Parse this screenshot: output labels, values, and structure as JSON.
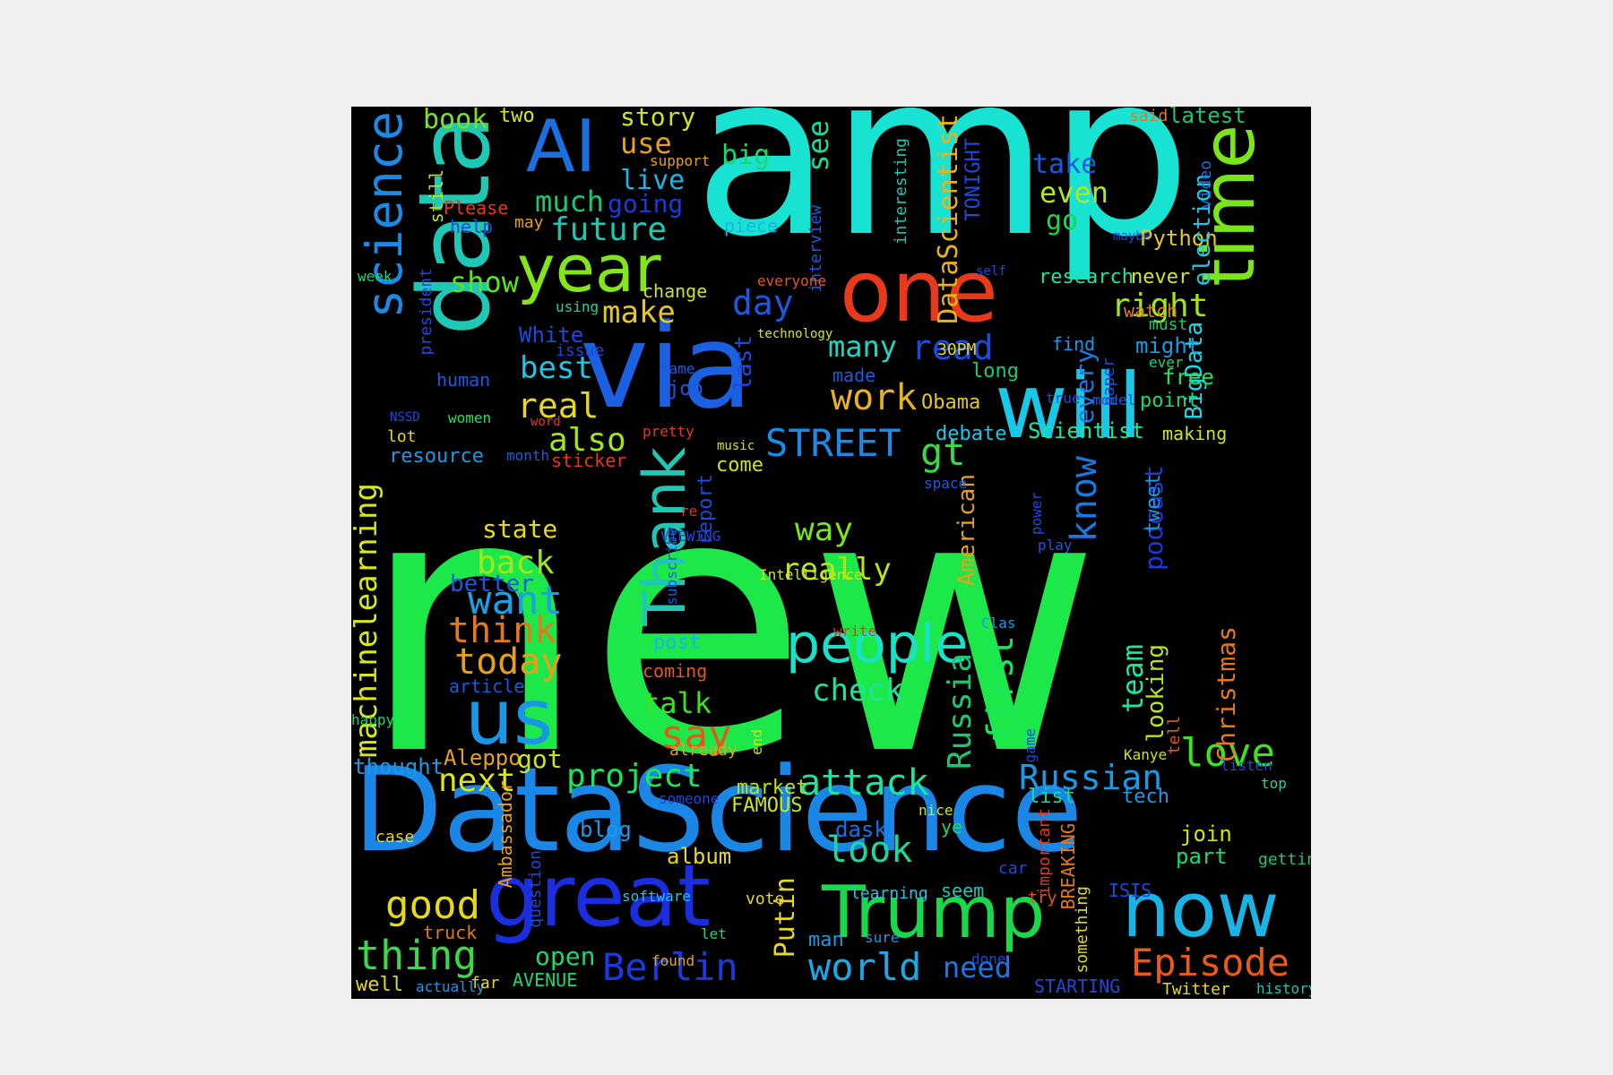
{
  "words": [
    {
      "text": "new",
      "color": "#1de84a",
      "orient": "h"
    },
    {
      "text": "amp",
      "color": "#18e2d2",
      "orient": "h"
    },
    {
      "text": "DataScience",
      "color": "#1a86e6",
      "orient": "h"
    },
    {
      "text": "data",
      "color": "#1ec8b4",
      "orient": "v"
    },
    {
      "text": "via",
      "color": "#1a60e0",
      "orient": "h"
    },
    {
      "text": "will",
      "color": "#18c8e6",
      "orient": "h"
    },
    {
      "text": "one",
      "color": "#e83a1a",
      "orient": "h"
    },
    {
      "text": "great",
      "color": "#1a2ee0",
      "orient": "h"
    },
    {
      "text": "Trump",
      "color": "#1ad84a",
      "orient": "h"
    },
    {
      "text": "now",
      "color": "#18b4e6",
      "orient": "h"
    },
    {
      "text": "time",
      "color": "#7ae61a",
      "orient": "v"
    },
    {
      "text": "AI",
      "color": "#1a70e0",
      "orient": "h"
    },
    {
      "text": "year",
      "color": "#82e61a",
      "orient": "h"
    },
    {
      "text": "science",
      "color": "#1a8ae6",
      "orient": "v"
    },
    {
      "text": "us",
      "color": "#1a96e6",
      "orient": "h"
    },
    {
      "text": "Thank",
      "color": "#1ec8b4",
      "orient": "v"
    },
    {
      "text": "people",
      "color": "#18e2c8",
      "orient": "h"
    },
    {
      "text": "Episode",
      "color": "#e85a1a",
      "orient": "h"
    },
    {
      "text": "machinelearning",
      "color": "#d8e61a",
      "orient": "v"
    },
    {
      "text": "Berlin",
      "color": "#1a3ae0",
      "orient": "h"
    },
    {
      "text": "world",
      "color": "#1aa8e6",
      "orient": "h"
    },
    {
      "text": "thing",
      "color": "#3ad84a",
      "orient": "h"
    },
    {
      "text": "good",
      "color": "#e6d81a",
      "orient": "h"
    },
    {
      "text": "love",
      "color": "#3ae61a",
      "orient": "h"
    },
    {
      "text": "look",
      "color": "#1ad8a0",
      "orient": "h"
    },
    {
      "text": "Russian",
      "color": "#1a9ae6",
      "orient": "h"
    },
    {
      "text": "Russia",
      "color": "#1ac870",
      "orient": "v"
    },
    {
      "text": "first",
      "color": "#1ae65a",
      "orient": "v"
    },
    {
      "text": "want",
      "color": "#1aa0e6",
      "orient": "h"
    },
    {
      "text": "think",
      "color": "#e6781a",
      "orient": "h"
    },
    {
      "text": "today",
      "color": "#e6a01a",
      "orient": "h"
    },
    {
      "text": "back",
      "color": "#a0e61a",
      "orient": "h"
    },
    {
      "text": "say",
      "color": "#e6581a",
      "orient": "h"
    },
    {
      "text": "attack",
      "color": "#1ae6a0",
      "orient": "h"
    },
    {
      "text": "next",
      "color": "#d8e61a",
      "orient": "h"
    },
    {
      "text": "project",
      "color": "#1ae65a",
      "orient": "h"
    },
    {
      "text": "talk",
      "color": "#3ae61a",
      "orient": "h"
    },
    {
      "text": "check",
      "color": "#1ae6a0",
      "orient": "h"
    },
    {
      "text": "really",
      "color": "#b4e61a",
      "orient": "h"
    },
    {
      "text": "way",
      "color": "#78e61a",
      "orient": "h"
    },
    {
      "text": "also",
      "color": "#a0e61a",
      "orient": "h"
    },
    {
      "text": "real",
      "color": "#e6d81a",
      "orient": "h"
    },
    {
      "text": "best",
      "color": "#1ac8e6",
      "orient": "h"
    },
    {
      "text": "work",
      "color": "#e6b41a",
      "orient": "h"
    },
    {
      "text": "gt",
      "color": "#3ad84a",
      "orient": "h"
    },
    {
      "text": "STREET",
      "color": "#1a8ae6",
      "orient": "h"
    },
    {
      "text": "read",
      "color": "#1a4ae0",
      "orient": "h"
    },
    {
      "text": "many",
      "color": "#1ad8c8",
      "orient": "h"
    },
    {
      "text": "right",
      "color": "#a0e61a",
      "orient": "h"
    },
    {
      "text": "make",
      "color": "#e6c81a",
      "orient": "h"
    },
    {
      "text": "day",
      "color": "#1a5ae0",
      "orient": "h"
    },
    {
      "text": "future",
      "color": "#1ac8b4",
      "orient": "h"
    },
    {
      "text": "much",
      "color": "#1ac870",
      "orient": "h"
    },
    {
      "text": "show",
      "color": "#58e61a",
      "orient": "h"
    },
    {
      "text": "going",
      "color": "#1a3ae0",
      "orient": "h"
    },
    {
      "text": "live",
      "color": "#1ab4e6",
      "orient": "h"
    },
    {
      "text": "use",
      "color": "#e6a01a",
      "orient": "h"
    },
    {
      "text": "big",
      "color": "#1ad870",
      "orient": "h"
    },
    {
      "text": "story",
      "color": "#c8e61a",
      "orient": "h"
    },
    {
      "text": "book",
      "color": "#78e61a",
      "orient": "h"
    },
    {
      "text": "two",
      "color": "#d8e61a",
      "orient": "h"
    },
    {
      "text": "see",
      "color": "#1ad8a0",
      "orient": "v"
    },
    {
      "text": "DataScientist",
      "color": "#e6b41a",
      "orient": "v"
    },
    {
      "text": "take",
      "color": "#1a5ae0",
      "orient": "h"
    },
    {
      "text": "even",
      "color": "#b4e61a",
      "orient": "h"
    },
    {
      "text": "go",
      "color": "#1ad84a",
      "orient": "h"
    },
    {
      "text": "Python",
      "color": "#e6c81a",
      "orient": "h"
    },
    {
      "text": "election",
      "color": "#1ac8e6",
      "orient": "v"
    },
    {
      "text": "research",
      "color": "#1ae6a0",
      "orient": "h"
    },
    {
      "text": "never",
      "color": "#d8e61a",
      "orient": "h"
    },
    {
      "text": "BigData",
      "color": "#1ad8e6",
      "orient": "v"
    },
    {
      "text": "said",
      "color": "#e6781a",
      "orient": "h"
    },
    {
      "text": "latest",
      "color": "#1ac870",
      "orient": "h"
    },
    {
      "text": "video",
      "color": "#1a70e0",
      "orient": "v"
    },
    {
      "text": "know",
      "color": "#1a78e6",
      "orient": "v"
    },
    {
      "text": "podcast",
      "color": "#1a3ae0",
      "orient": "v"
    },
    {
      "text": "every",
      "color": "#1a7ae6",
      "orient": "v"
    },
    {
      "text": "might",
      "color": "#1a9ae6",
      "orient": "h"
    },
    {
      "text": "free",
      "color": "#1ae65a",
      "orient": "h"
    },
    {
      "text": "point",
      "color": "#1ad870",
      "orient": "h"
    },
    {
      "text": "making",
      "color": "#c8e61a",
      "orient": "h"
    },
    {
      "text": "Scientist",
      "color": "#1ae6a0",
      "orient": "h"
    },
    {
      "text": "debate",
      "color": "#1ac8e6",
      "orient": "h"
    },
    {
      "text": "find",
      "color": "#1a9ae6",
      "orient": "h"
    },
    {
      "text": "American",
      "color": "#e6a01a",
      "orient": "v"
    },
    {
      "text": "Obama",
      "color": "#e6c81a",
      "orient": "h"
    },
    {
      "text": "long",
      "color": "#1ac870",
      "orient": "h"
    },
    {
      "text": "30PM",
      "color": "#e6d81a",
      "orient": "h"
    },
    {
      "text": "TONIGHT",
      "color": "#1a4ae0",
      "orient": "v"
    },
    {
      "text": "team",
      "color": "#1ae6a0",
      "orient": "v"
    },
    {
      "text": "looking",
      "color": "#b4e61a",
      "orient": "v"
    },
    {
      "text": "Christmas",
      "color": "#e6781a",
      "orient": "v"
    },
    {
      "text": "list",
      "color": "#1ad8a0",
      "orient": "h"
    },
    {
      "text": "tech",
      "color": "#1a9ae6",
      "orient": "h"
    },
    {
      "text": "join",
      "color": "#c8e61a",
      "orient": "h"
    },
    {
      "text": "part",
      "color": "#1ad870",
      "orient": "h"
    },
    {
      "text": "Putin",
      "color": "#e6d81a",
      "orient": "v"
    },
    {
      "text": "need",
      "color": "#1a78e6",
      "orient": "h"
    },
    {
      "text": "STARTING",
      "color": "#1a4ae0",
      "orient": "h"
    },
    {
      "text": "Twitter",
      "color": "#e6d81a",
      "orient": "h"
    },
    {
      "text": "history",
      "color": "#1ac8b4",
      "orient": "h"
    },
    {
      "text": "open",
      "color": "#1ad870",
      "orient": "h"
    },
    {
      "text": "AVENUE",
      "color": "#1ad870",
      "orient": "h"
    },
    {
      "text": "well",
      "color": "#e6d81a",
      "orient": "h"
    },
    {
      "text": "actually",
      "color": "#1a9ae6",
      "orient": "h"
    },
    {
      "text": "album",
      "color": "#e6d81a",
      "orient": "h"
    },
    {
      "text": "blog",
      "color": "#1a9ae6",
      "orient": "h"
    },
    {
      "text": "market",
      "color": "#b4e61a",
      "orient": "h"
    },
    {
      "text": "FAMOUS",
      "color": "#c8e61a",
      "orient": "h"
    },
    {
      "text": "dask",
      "color": "#1a70e0",
      "orient": "h"
    },
    {
      "text": "Aleppo",
      "color": "#e6a01a",
      "orient": "h"
    },
    {
      "text": "got",
      "color": "#c8e61a",
      "orient": "h"
    },
    {
      "text": "thought",
      "color": "#1a9ae6",
      "orient": "h"
    },
    {
      "text": "article",
      "color": "#1a5ae0",
      "orient": "h"
    },
    {
      "text": "post",
      "color": "#1ab4e6",
      "orient": "h"
    },
    {
      "text": "coming",
      "color": "#e6581a",
      "orient": "h"
    },
    {
      "text": "state",
      "color": "#e6d81a",
      "orient": "h"
    },
    {
      "text": "better",
      "color": "#1a5ae0",
      "orient": "h"
    },
    {
      "text": "report",
      "color": "#1a4ae0",
      "orient": "v"
    },
    {
      "text": "come",
      "color": "#c8e61a",
      "orient": "h"
    },
    {
      "text": "last",
      "color": "#1a4ae0",
      "orient": "v"
    },
    {
      "text": "job",
      "color": "#1a5ae0",
      "orient": "h"
    },
    {
      "text": "made",
      "color": "#1a5ae0",
      "orient": "h"
    },
    {
      "text": "White",
      "color": "#1a4ae0",
      "orient": "h"
    },
    {
      "text": "human",
      "color": "#1a5ae0",
      "orient": "h"
    },
    {
      "text": "resource",
      "color": "#1a9ae6",
      "orient": "h"
    },
    {
      "text": "sticker",
      "color": "#e6381a",
      "orient": "h"
    },
    {
      "text": "Please",
      "color": "#e6381a",
      "orient": "h"
    },
    {
      "text": "help",
      "color": "#1a4ae0",
      "orient": "h"
    },
    {
      "text": "may",
      "color": "#e6a01a",
      "orient": "h"
    },
    {
      "text": "still",
      "color": "#b4e61a",
      "orient": "v"
    },
    {
      "text": "president",
      "color": "#1a4ae0",
      "orient": "v"
    },
    {
      "text": "change",
      "color": "#c8e61a",
      "orient": "h"
    },
    {
      "text": "piece",
      "color": "#1ab4e6",
      "orient": "h"
    },
    {
      "text": "interview",
      "color": "#1a5ae0",
      "orient": "v"
    },
    {
      "text": "interesting",
      "color": "#1ac8b4",
      "orient": "v"
    },
    {
      "text": "support",
      "color": "#e6a01a",
      "orient": "h"
    },
    {
      "text": "maybe",
      "color": "#1a4ae0",
      "orient": "h"
    },
    {
      "text": "self",
      "color": "#1a4ae0",
      "orient": "h"
    },
    {
      "text": "everyone",
      "color": "#e6581a",
      "orient": "h"
    },
    {
      "text": "technology",
      "color": "#d8e61a",
      "orient": "h"
    },
    {
      "text": "using",
      "color": "#1ad8a0",
      "orient": "h"
    },
    {
      "text": "issue",
      "color": "#1a4ae0",
      "orient": "h"
    },
    {
      "text": "week",
      "color": "#1ad870",
      "orient": "h"
    },
    {
      "text": "name",
      "color": "#1a5ae0",
      "orient": "h"
    },
    {
      "text": "NSSD",
      "color": "#1a4ae0",
      "orient": "h"
    },
    {
      "text": "women",
      "color": "#1ae65a",
      "orient": "h"
    },
    {
      "text": "word",
      "color": "#e6381a",
      "orient": "h"
    },
    {
      "text": "pretty",
      "color": "#e6381a",
      "orient": "h"
    },
    {
      "text": "lot",
      "color": "#e6d81a",
      "orient": "h"
    },
    {
      "text": "month",
      "color": "#1a5ae0",
      "orient": "h"
    },
    {
      "text": "music",
      "color": "#c8e61a",
      "orient": "h"
    },
    {
      "text": "space",
      "color": "#1a5ae0",
      "orient": "h"
    },
    {
      "text": "watch",
      "color": "#e6781a",
      "orient": "h"
    },
    {
      "text": "must",
      "color": "#1ac870",
      "orient": "h"
    },
    {
      "text": "ever",
      "color": "#1ad870",
      "orient": "h"
    },
    {
      "text": "paper",
      "color": "#1a4ae0",
      "orient": "v"
    },
    {
      "text": "model",
      "color": "#1a5ae0",
      "orient": "h"
    },
    {
      "text": "true",
      "color": "#1a4ae0",
      "orient": "h"
    },
    {
      "text": "tweet",
      "color": "#1a9ae6",
      "orient": "v"
    },
    {
      "text": "power",
      "color": "#1a4ae0",
      "orient": "v"
    },
    {
      "text": "play",
      "color": "#1a5ae0",
      "orient": "h"
    },
    {
      "text": "VIEWING",
      "color": "#1a4ae0",
      "orient": "h"
    },
    {
      "text": "subscribe",
      "color": "#1a5ae0",
      "orient": "v"
    },
    {
      "text": "Intelligence",
      "color": "#c8e61a",
      "orient": "h"
    },
    {
      "text": "re",
      "color": "#e6381a",
      "orient": "h"
    },
    {
      "text": "Clas",
      "color": "#1a9ae6",
      "orient": "h"
    },
    {
      "text": "write",
      "color": "#e6381a",
      "orient": "h"
    },
    {
      "text": "happy",
      "color": "#1ad870",
      "orient": "h"
    },
    {
      "text": "already",
      "color": "#e6a01a",
      "orient": "h"
    },
    {
      "text": "end",
      "color": "#c8e61a",
      "orient": "v"
    },
    {
      "text": "someone",
      "color": "#1a4ae0",
      "orient": "h"
    },
    {
      "text": "Ambassador",
      "color": "#e6a01a",
      "orient": "v"
    },
    {
      "text": "case",
      "color": "#e6d81a",
      "orient": "h"
    },
    {
      "text": "nice",
      "color": "#c8e61a",
      "orient": "h"
    },
    {
      "text": "ye",
      "color": "#1ad870",
      "orient": "h"
    },
    {
      "text": "game",
      "color": "#1a4ae0",
      "orient": "v"
    },
    {
      "text": "important",
      "color": "#e6381a",
      "orient": "v"
    },
    {
      "text": "BREAKING",
      "color": "#e6781a",
      "orient": "v"
    },
    {
      "text": "Kanye",
      "color": "#c8e61a",
      "orient": "h"
    },
    {
      "text": "tell",
      "color": "#e6581a",
      "orient": "v"
    },
    {
      "text": "listen",
      "color": "#1a4ae0",
      "orient": "h"
    },
    {
      "text": "top",
      "color": "#1ad8a0",
      "orient": "h"
    },
    {
      "text": "getting",
      "color": "#1ac870",
      "orient": "h"
    },
    {
      "text": "question",
      "color": "#1a4ae0",
      "orient": "v"
    },
    {
      "text": "software",
      "color": "#1ac8e6",
      "orient": "h"
    },
    {
      "text": "vote",
      "color": "#e6d81a",
      "orient": "h"
    },
    {
      "text": "learning",
      "color": "#1ac8e6",
      "orient": "h"
    },
    {
      "text": "seem",
      "color": "#1ac8b4",
      "orient": "h"
    },
    {
      "text": "car",
      "color": "#1a4ae0",
      "orient": "h"
    },
    {
      "text": "try",
      "color": "#e6581a",
      "orient": "h"
    },
    {
      "text": "something",
      "color": "#e6d81a",
      "orient": "v"
    },
    {
      "text": "ISIS",
      "color": "#1a4ae0",
      "orient": "h"
    },
    {
      "text": "truck",
      "color": "#e6781a",
      "orient": "h"
    },
    {
      "text": "let",
      "color": "#1ad870",
      "orient": "h"
    },
    {
      "text": "man",
      "color": "#1a9ae6",
      "orient": "h"
    },
    {
      "text": "sure",
      "color": "#1a9ae6",
      "orient": "h"
    },
    {
      "text": "done",
      "color": "#1a4ae0",
      "orient": "h"
    },
    {
      "text": "found",
      "color": "#e6a01a",
      "orient": "h"
    },
    {
      "text": "far",
      "color": "#e6d81a",
      "orient": "h"
    }
  ]
}
